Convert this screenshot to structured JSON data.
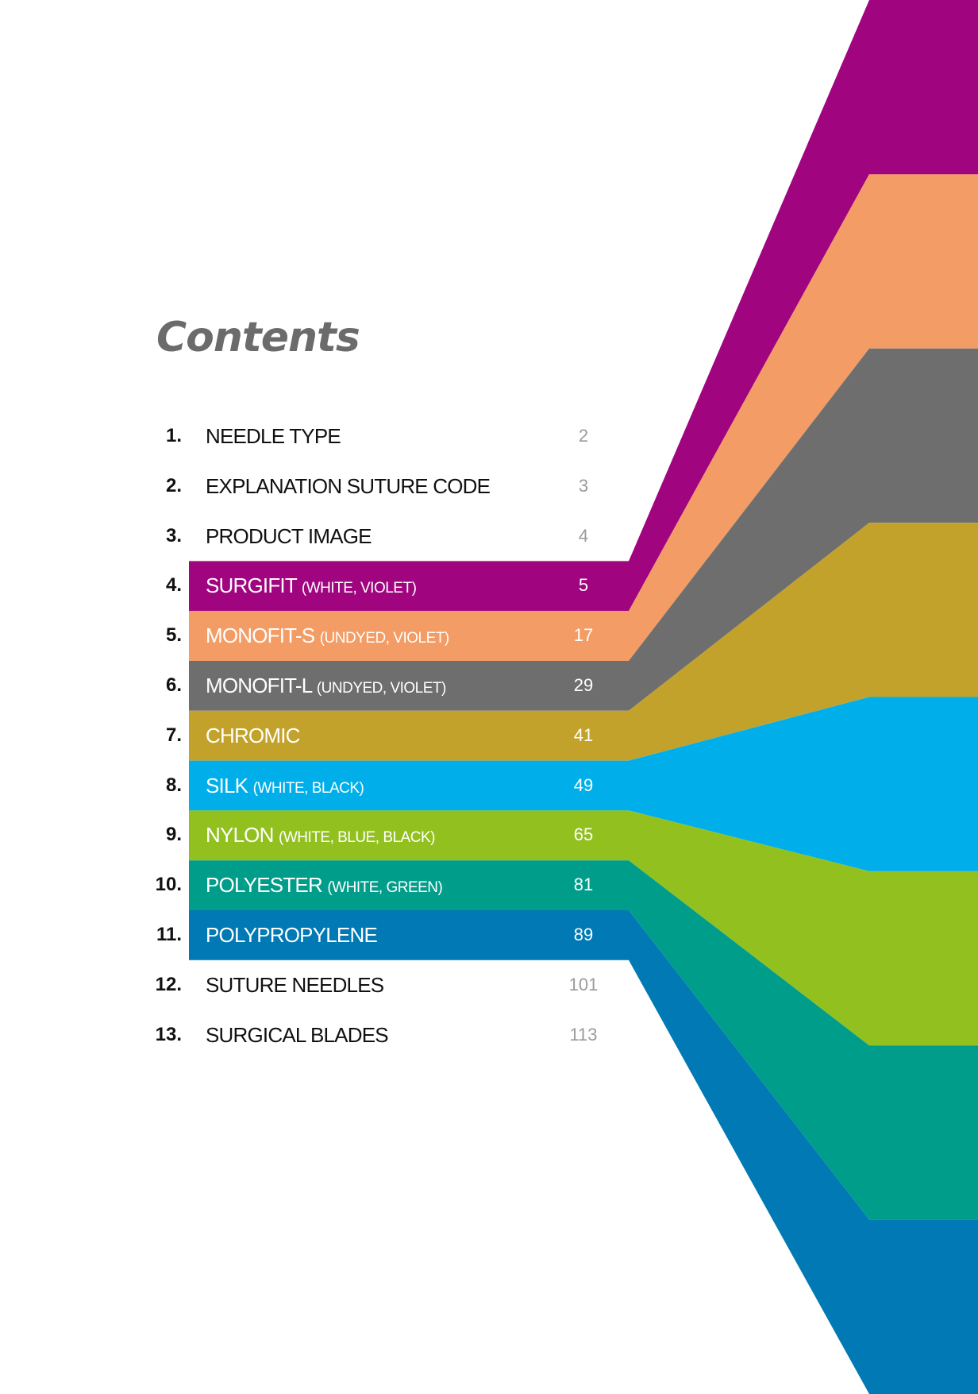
{
  "title": "Contents",
  "colors": {
    "title": "#6b6b6b",
    "number": "#111111",
    "page_plain": "#9a9a9a",
    "surgifit": "#a0057f",
    "monofit_s": "#f39c65",
    "monofit_l": "#6e6e6e",
    "chromic": "#c3a22c",
    "silk": "#00afea",
    "nylon": "#92c11f",
    "polyester": "#009e8a",
    "polypropylene": "#0079b5"
  },
  "items": [
    {
      "num": "1.",
      "title": "NEEDLE TYPE",
      "sub": "",
      "page": "2",
      "color": ""
    },
    {
      "num": "2.",
      "title": "EXPLANATION SUTURE CODE",
      "sub": "",
      "page": "3",
      "color": ""
    },
    {
      "num": "3.",
      "title": "PRODUCT IMAGE",
      "sub": "",
      "page": "4",
      "color": ""
    },
    {
      "num": "4.",
      "title": "SURGIFIT",
      "sub": "(WHITE, VIOLET)",
      "page": "5",
      "color": "#a0057f"
    },
    {
      "num": "5.",
      "title": "MONOFIT-S",
      "sub": "(UNDYED, VIOLET)",
      "page": "17",
      "color": "#f39c65"
    },
    {
      "num": "6.",
      "title": "MONOFIT-L",
      "sub": "(UNDYED, VIOLET)",
      "page": "29",
      "color": "#6e6e6e"
    },
    {
      "num": "7.",
      "title": "CHROMIC",
      "sub": "",
      "page": "41",
      "color": "#c3a22c"
    },
    {
      "num": "8.",
      "title": "SILK",
      "sub": "(WHITE, BLACK)",
      "page": "49",
      "color": "#00afea"
    },
    {
      "num": "9.",
      "title": "NYLON",
      "sub": "(WHITE, BLUE, BLACK)",
      "page": "65",
      "color": "#92c11f"
    },
    {
      "num": "10.",
      "title": "POLYESTER",
      "sub": "(WHITE, GREEN)",
      "page": "81",
      "color": "#009e8a"
    },
    {
      "num": "11.",
      "title": "POLYPROPYLENE",
      "sub": "",
      "page": "89",
      "color": "#0079b5"
    },
    {
      "num": "12.",
      "title": "SUTURE NEEDLES",
      "sub": "",
      "page": "101",
      "color": ""
    },
    {
      "num": "13.",
      "title": "SURGICAL BLADES",
      "sub": "",
      "page": "113",
      "color": ""
    }
  ]
}
